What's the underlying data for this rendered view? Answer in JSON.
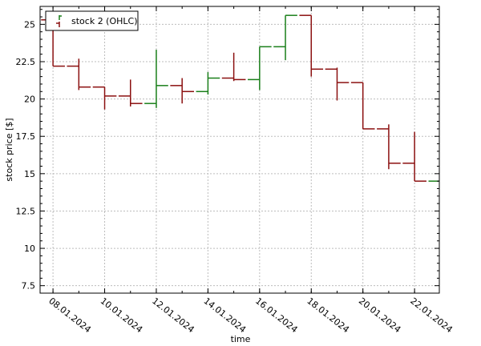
{
  "chart_data": {
    "type": "ohlc",
    "xlabel": "time",
    "ylabel": "stock price [$]",
    "ylim": [
      7,
      26.2
    ],
    "yticks": [
      7.5,
      10,
      12.5,
      15,
      17.5,
      20,
      22.5,
      25
    ],
    "ytick_labels": [
      "7.5",
      "10",
      "12.5",
      "15",
      "17.5",
      "20",
      "22.5",
      "25"
    ],
    "xlim": [
      "2024-01-07T12:00",
      "2024-01-22T23:00"
    ],
    "xticks": [
      "2024-01-08",
      "2024-01-10",
      "2024-01-12",
      "2024-01-14",
      "2024-01-16",
      "2024-01-18",
      "2024-01-20",
      "2024-01-22"
    ],
    "xtick_labels": [
      "08.01.2024",
      "10.01.2024",
      "12.01.2024",
      "14.01.2024",
      "16.01.2024",
      "18.01.2024",
      "20.01.2024",
      "22.01.2024"
    ],
    "grid": true,
    "legend": {
      "position": "top-left",
      "label": "stock 2 (OHLC)"
    },
    "colors": {
      "up": "#1a7f1a",
      "down": "#8b1010"
    },
    "series": [
      {
        "name": "stock 2 (OHLC)",
        "points": [
          {
            "date": "2024-01-08",
            "open": 25.3,
            "high": 25.6,
            "low": 22.2,
            "close": 22.2
          },
          {
            "date": "2024-01-09",
            "open": 22.2,
            "high": 22.7,
            "low": 20.6,
            "close": 20.8
          },
          {
            "date": "2024-01-10",
            "open": 20.8,
            "high": 20.8,
            "low": 19.3,
            "close": 20.2
          },
          {
            "date": "2024-01-11",
            "open": 20.2,
            "high": 21.3,
            "low": 19.5,
            "close": 19.7
          },
          {
            "date": "2024-01-12",
            "open": 19.7,
            "high": 23.3,
            "low": 19.4,
            "close": 20.9
          },
          {
            "date": "2024-01-13",
            "open": 20.9,
            "high": 21.4,
            "low": 19.7,
            "close": 20.5
          },
          {
            "date": "2024-01-14",
            "open": 20.5,
            "high": 21.8,
            "low": 20.3,
            "close": 21.4
          },
          {
            "date": "2024-01-15",
            "open": 21.4,
            "high": 23.1,
            "low": 21.2,
            "close": 21.3
          },
          {
            "date": "2024-01-16",
            "open": 21.3,
            "high": 23.5,
            "low": 20.6,
            "close": 23.5
          },
          {
            "date": "2024-01-17",
            "open": 23.5,
            "high": 25.6,
            "low": 22.6,
            "close": 25.6
          },
          {
            "date": "2024-01-18",
            "open": 25.6,
            "high": 25.6,
            "low": 21.5,
            "close": 22.0
          },
          {
            "date": "2024-01-19",
            "open": 22.0,
            "high": 22.1,
            "low": 19.9,
            "close": 21.1
          },
          {
            "date": "2024-01-20",
            "open": 21.1,
            "high": 21.1,
            "low": 18.0,
            "close": 18.0
          },
          {
            "date": "2024-01-21",
            "open": 18.0,
            "high": 18.3,
            "low": 15.3,
            "close": 15.7
          },
          {
            "date": "2024-01-22",
            "open": 15.7,
            "high": 17.8,
            "low": 14.5,
            "close": 14.5
          },
          {
            "date": "2024-01-23",
            "open": 14.5,
            "high": 14.6,
            "low": 14.5,
            "close": 14.6
          }
        ]
      }
    ]
  }
}
